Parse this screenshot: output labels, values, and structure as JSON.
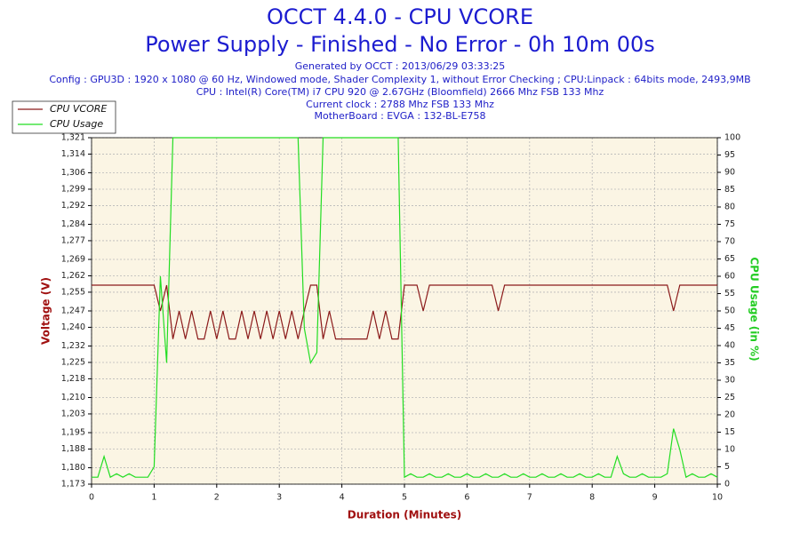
{
  "chart_data": {
    "type": "line",
    "title": "OCCT 4.4.0 - CPU VCORE",
    "subtitle": "Power Supply - Finished - No Error - 0h 10m 00s",
    "info": [
      "Generated by OCCT : 2013/06/29 03:33:25",
      "Config : GPU3D : 1920 x 1080 @ 60 Hz, Windowed mode, Shader Complexity 1, without Error Checking ; CPU:Linpack : 64bits mode, 2493,9MB",
      "CPU : Intel(R) Core(TM) i7 CPU 920 @ 2.67GHz (Bloomfield) 2666 Mhz FSB 133 Mhz",
      "Current clock : 2788 Mhz FSB 133 Mhz",
      "MotherBoard : EVGA : 132-BL-E758"
    ],
    "xlabel": "Duration (Minutes)",
    "ylabel": "Voltage (V)",
    "y2label": "CPU Usage (in %)",
    "x": [
      0,
      0.1,
      0.2,
      0.3,
      0.4,
      0.5,
      0.6,
      0.7,
      0.8,
      0.9,
      1,
      1.1,
      1.2,
      1.3,
      1.4,
      1.5,
      1.6,
      1.7,
      1.8,
      1.9,
      2,
      2.1,
      2.2,
      2.3,
      2.4,
      2.5,
      2.6,
      2.7,
      2.8,
      2.9,
      3,
      3.1,
      3.2,
      3.3,
      3.4,
      3.5,
      3.6,
      3.7,
      3.8,
      3.9,
      4,
      4.1,
      4.2,
      4.3,
      4.4,
      4.5,
      4.6,
      4.7,
      4.8,
      4.9,
      5,
      5.1,
      5.2,
      5.3,
      5.4,
      5.5,
      5.6,
      5.7,
      5.8,
      5.9,
      6,
      6.1,
      6.2,
      6.3,
      6.4,
      6.5,
      6.6,
      6.7,
      6.8,
      6.9,
      7,
      7.1,
      7.2,
      7.3,
      7.4,
      7.5,
      7.6,
      7.7,
      7.8,
      7.9,
      8,
      8.1,
      8.2,
      8.3,
      8.4,
      8.5,
      8.6,
      8.7,
      8.8,
      8.9,
      9,
      9.1,
      9.2,
      9.3,
      9.4,
      9.5,
      9.6,
      9.7,
      9.8,
      9.9,
      10
    ],
    "series": [
      {
        "name": "CPU VCORE",
        "color": "#8b1a1a",
        "values": [
          1.258,
          1.258,
          1.258,
          1.258,
          1.258,
          1.258,
          1.258,
          1.258,
          1.258,
          1.258,
          1.258,
          1.247,
          1.258,
          1.235,
          1.247,
          1.235,
          1.247,
          1.235,
          1.235,
          1.247,
          1.235,
          1.247,
          1.235,
          1.235,
          1.247,
          1.235,
          1.247,
          1.235,
          1.247,
          1.235,
          1.247,
          1.235,
          1.247,
          1.235,
          1.247,
          1.258,
          1.258,
          1.235,
          1.247,
          1.235,
          1.235,
          1.235,
          1.235,
          1.235,
          1.235,
          1.247,
          1.235,
          1.247,
          1.235,
          1.235,
          1.258,
          1.258,
          1.258,
          1.247,
          1.258,
          1.258,
          1.258,
          1.258,
          1.258,
          1.258,
          1.258,
          1.258,
          1.258,
          1.258,
          1.258,
          1.247,
          1.258,
          1.258,
          1.258,
          1.258,
          1.258,
          1.258,
          1.258,
          1.258,
          1.258,
          1.258,
          1.258,
          1.258,
          1.258,
          1.258,
          1.258,
          1.258,
          1.258,
          1.258,
          1.258,
          1.258,
          1.258,
          1.258,
          1.258,
          1.258,
          1.258,
          1.258,
          1.258,
          1.247,
          1.258,
          1.258,
          1.258,
          1.258,
          1.258,
          1.258,
          1.258
        ]
      },
      {
        "name": "CPU Usage",
        "color": "#22dd22",
        "axis": "y2",
        "values": [
          2,
          2,
          8,
          2,
          3,
          2,
          3,
          2,
          2,
          2,
          5,
          60,
          35,
          100,
          100,
          100,
          100,
          100,
          100,
          100,
          100,
          100,
          100,
          100,
          100,
          100,
          100,
          100,
          100,
          100,
          100,
          100,
          100,
          100,
          45,
          35,
          38,
          100,
          100,
          100,
          100,
          100,
          100,
          100,
          100,
          100,
          100,
          100,
          100,
          100,
          2,
          3,
          2,
          2,
          3,
          2,
          2,
          3,
          2,
          2,
          3,
          2,
          2,
          3,
          2,
          2,
          3,
          2,
          2,
          3,
          2,
          2,
          3,
          2,
          2,
          3,
          2,
          2,
          3,
          2,
          2,
          3,
          2,
          2,
          8,
          3,
          2,
          2,
          3,
          2,
          2,
          2,
          3,
          16,
          10,
          2,
          3,
          2,
          2,
          3,
          2
        ]
      }
    ],
    "xlim": [
      0,
      10
    ],
    "xticks": [
      0,
      1,
      2,
      3,
      4,
      5,
      6,
      7,
      8,
      9,
      10
    ],
    "ylim": [
      1.173,
      1.321
    ],
    "yticks": [
      {
        "value": 1.173,
        "label": "1,173"
      },
      {
        "value": 1.18,
        "label": "1,180"
      },
      {
        "value": 1.188,
        "label": "1,188"
      },
      {
        "value": 1.195,
        "label": "1,195"
      },
      {
        "value": 1.203,
        "label": "1,203"
      },
      {
        "value": 1.21,
        "label": "1,210"
      },
      {
        "value": 1.218,
        "label": "1,218"
      },
      {
        "value": 1.225,
        "label": "1,225"
      },
      {
        "value": 1.232,
        "label": "1,232"
      },
      {
        "value": 1.24,
        "label": "1,240"
      },
      {
        "value": 1.247,
        "label": "1,247"
      },
      {
        "value": 1.255,
        "label": "1,255"
      },
      {
        "value": 1.262,
        "label": "1,262"
      },
      {
        "value": 1.269,
        "label": "1,269"
      },
      {
        "value": 1.277,
        "label": "1,277"
      },
      {
        "value": 1.284,
        "label": "1,284"
      },
      {
        "value": 1.292,
        "label": "1,292"
      },
      {
        "value": 1.299,
        "label": "1,299"
      },
      {
        "value": 1.306,
        "label": "1,306"
      },
      {
        "value": 1.314,
        "label": "1,314"
      },
      {
        "value": 1.321,
        "label": "1,321"
      }
    ],
    "y2lim": [
      0,
      100
    ],
    "y2ticks": [
      0,
      5,
      10,
      15,
      20,
      25,
      30,
      35,
      40,
      45,
      50,
      55,
      60,
      65,
      70,
      75,
      80,
      85,
      90,
      95,
      100
    ],
    "grid": true,
    "legend": "top-left"
  }
}
